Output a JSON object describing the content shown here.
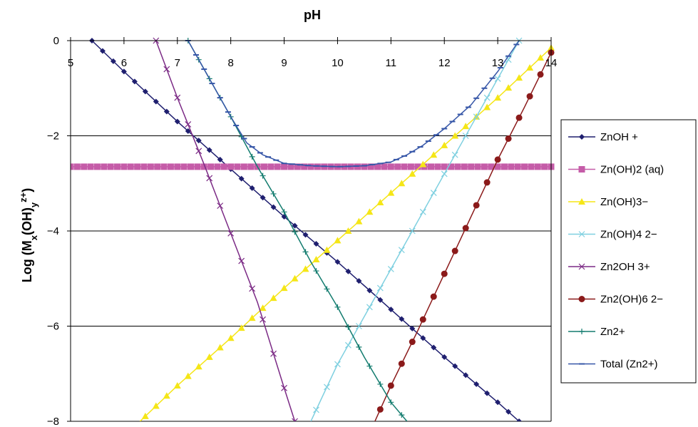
{
  "chart_data": {
    "type": "line",
    "title": "pH",
    "xlabel": "pH",
    "ylabel": "Log (M_x(OH)_y^z+)",
    "xlim": [
      5,
      14
    ],
    "ylim": [
      -8,
      0
    ],
    "x_ticks": [
      5,
      6,
      7,
      8,
      9,
      10,
      11,
      12,
      13,
      14
    ],
    "y_ticks": [
      0,
      -2,
      -4,
      -6,
      -8
    ],
    "y_tick_labels": [
      "0",
      "−2",
      "−4",
      "−6",
      "−8"
    ],
    "grid": "horizontal",
    "x_axis_position": "top",
    "legend_position": "right",
    "series": [
      {
        "name": "ZnOH +",
        "color": "#1f1f6f",
        "marker": "diamond",
        "x": [
          5.4,
          6.0,
          7.0,
          8.0,
          9.0,
          10.0,
          11.0,
          12.0,
          13.0,
          13.4
        ],
        "y": [
          0.0,
          -0.65,
          -1.7,
          -2.7,
          -3.7,
          -4.65,
          -5.65,
          -6.65,
          -7.6,
          -8.0
        ]
      },
      {
        "name": "Zn(OH)2 (aq)",
        "color": "#c55ca8",
        "marker": "square",
        "x": [
          5.0,
          6.0,
          7.0,
          8.0,
          9.0,
          10.0,
          11.0,
          12.0,
          13.0,
          14.0
        ],
        "y": [
          -2.65,
          -2.65,
          -2.65,
          -2.65,
          -2.65,
          -2.65,
          -2.65,
          -2.65,
          -2.65,
          -2.65
        ]
      },
      {
        "name": "Zn(OH)3−",
        "color": "#f5e617",
        "marker": "triangle",
        "x": [
          6.3,
          7.0,
          8.0,
          9.0,
          10.0,
          11.0,
          12.0,
          13.0,
          14.0
        ],
        "y": [
          -8.0,
          -7.25,
          -6.25,
          -5.2,
          -4.2,
          -3.2,
          -2.2,
          -1.2,
          -0.15
        ]
      },
      {
        "name": "Zn(OH)4 2−",
        "color": "#7fd0e0",
        "marker": "x",
        "x": [
          9.5,
          10.0,
          11.0,
          12.0,
          13.0,
          13.4
        ],
        "y": [
          -8.0,
          -6.8,
          -4.8,
          -2.8,
          -0.8,
          0.0
        ]
      },
      {
        "name": "Zn2OH 3+",
        "color": "#7b2a85",
        "marker": "x",
        "x": [
          6.6,
          7.0,
          7.5,
          8.0,
          8.5,
          9.0,
          9.2
        ],
        "y": [
          0.0,
          -1.2,
          -2.6,
          -4.05,
          -5.5,
          -7.3,
          -8.0
        ]
      },
      {
        "name": "Zn2(OH)6 2−",
        "color": "#8b1a1a",
        "marker": "circle",
        "x": [
          10.7,
          11.0,
          11.5,
          12.0,
          12.5,
          13.0,
          13.5,
          14.0
        ],
        "y": [
          -8.0,
          -7.25,
          -6.1,
          -4.9,
          -3.7,
          -2.5,
          -1.4,
          -0.25
        ]
      },
      {
        "name": "Zn2+",
        "color": "#137c6f",
        "marker": "plus",
        "x": [
          7.2,
          7.5,
          8.0,
          8.5,
          9.0,
          9.5,
          10.0,
          10.5,
          11.0,
          11.3
        ],
        "y": [
          0.0,
          -0.6,
          -1.6,
          -2.65,
          -3.6,
          -4.65,
          -5.6,
          -6.65,
          -7.6,
          -8.0
        ]
      },
      {
        "name": "Total (Zn2+)",
        "color": "#3757a8",
        "marker": "dash",
        "x": [
          7.2,
          7.5,
          8.0,
          8.3,
          8.6,
          9.0,
          9.5,
          10.0,
          10.5,
          11.0,
          11.3,
          11.6,
          12.0,
          12.5,
          13.0,
          13.4
        ],
        "y": [
          0.0,
          -0.6,
          -1.6,
          -2.15,
          -2.4,
          -2.58,
          -2.63,
          -2.65,
          -2.63,
          -2.55,
          -2.4,
          -2.2,
          -1.85,
          -1.35,
          -0.65,
          0.0
        ]
      }
    ]
  }
}
